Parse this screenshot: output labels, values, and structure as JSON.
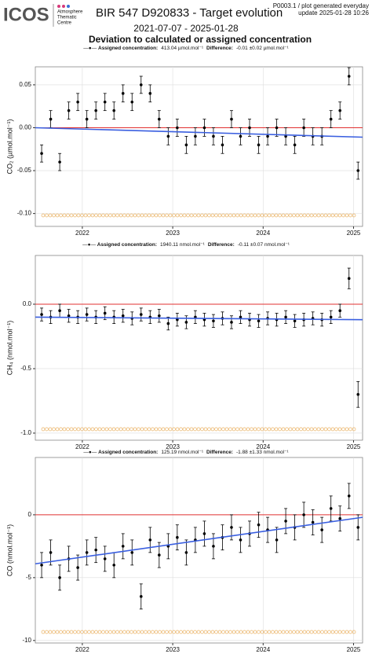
{
  "header": {
    "logo": "ICOS",
    "logo_sub": [
      "Atmosphere",
      "Thematic",
      "Centre"
    ],
    "title": "BIR 547 D920833 - Target evolution",
    "info": "P0003.1 / plot generated everyday",
    "update": "update  2025-01-28 10:26",
    "period": "2021-07-07 - 2025-01-28",
    "heading": "Deviation to calculated or assigned concentration"
  },
  "chart_data": [
    {
      "type": "scatter",
      "y_label": "CO₂ (µmol.mol⁻¹)",
      "legend": {
        "label1": "Assigned concentration:",
        "value1": "413.04 µmol.mol⁻¹",
        "label2": "Difference:",
        "value2": "-0.01 ±0.02 µmol.mol⁻¹"
      },
      "xlim": [
        2021.48,
        2025.1
      ],
      "xticks": [
        2022,
        2023,
        2024,
        2025
      ],
      "ylim": [
        -0.115,
        0.071
      ],
      "yticks": [
        0.05,
        {
          "value": 0,
          "label": "0.00"
        },
        -0.05,
        {
          "value": -0.1,
          "label": "-0.10"
        }
      ],
      "grid": true,
      "color": "#000000",
      "x": [
        2021.55,
        2021.65,
        2021.75,
        2021.85,
        2021.95,
        2022.05,
        2022.15,
        2022.25,
        2022.35,
        2022.45,
        2022.55,
        2022.65,
        2022.75,
        2022.85,
        2022.95,
        2023.05,
        2023.15,
        2023.25,
        2023.35,
        2023.45,
        2023.55,
        2023.65,
        2023.75,
        2023.85,
        2023.95,
        2024.05,
        2024.15,
        2024.25,
        2024.35,
        2024.45,
        2024.55,
        2024.65,
        2024.75,
        2024.85,
        2024.95,
        2025.05
      ],
      "values": [
        -0.03,
        0.01,
        -0.04,
        0.02,
        0.03,
        0.01,
        0.02,
        0.03,
        0.02,
        0.04,
        0.03,
        0.05,
        0.04,
        0.01,
        -0.01,
        0,
        -0.02,
        -0.01,
        0,
        -0.01,
        -0.02,
        0.01,
        -0.01,
        0,
        -0.02,
        -0.01,
        0,
        -0.01,
        -0.02,
        0,
        -0.01,
        -0.01,
        0.01,
        0.02,
        0.06,
        -0.05
      ],
      "errors": [
        0.01,
        0.01,
        0.01,
        0.01,
        0.01,
        0.01,
        0.01,
        0.01,
        0.01,
        0.01,
        0.01,
        0.01,
        0.01,
        0.01,
        0.01,
        0.01,
        0.01,
        0.01,
        0.01,
        0.01,
        0.01,
        0.01,
        0.01,
        0.01,
        0.01,
        0.01,
        0.01,
        0.01,
        0.01,
        0.01,
        0.01,
        0.01,
        0.01,
        0.01,
        0.01,
        0.01
      ],
      "reference": {
        "value": 0,
        "color": "#e03030"
      },
      "trend": {
        "x": [
          2021.48,
          2025.1
        ],
        "values": [
          0,
          -0.011
        ],
        "color": "#3a5fe0"
      }
    },
    {
      "type": "scatter",
      "y_label": "CH₄ (nmol.mol⁻¹)",
      "legend": {
        "label1": "Assigned concentration:",
        "value1": "1940.11 nmol.mol⁻¹",
        "label2": "Difference:",
        "value2": "-0.11 ±0.07 nmol.mol⁻¹"
      },
      "xlim": [
        2021.48,
        2025.1
      ],
      "xticks": [
        2022,
        2023,
        2024,
        2025
      ],
      "ylim": [
        -1.055,
        0.378
      ],
      "yticks": [
        {
          "value": 0,
          "label": "0.0"
        },
        -0.5,
        {
          "value": -1,
          "label": "-1.0"
        }
      ],
      "grid": true,
      "color": "#000000",
      "x": [
        2021.55,
        2021.65,
        2021.75,
        2021.85,
        2021.95,
        2022.05,
        2022.15,
        2022.25,
        2022.35,
        2022.45,
        2022.55,
        2022.65,
        2022.75,
        2022.85,
        2022.95,
        2023.05,
        2023.15,
        2023.25,
        2023.35,
        2023.45,
        2023.55,
        2023.65,
        2023.75,
        2023.85,
        2023.95,
        2024.05,
        2024.15,
        2024.25,
        2024.35,
        2024.45,
        2024.55,
        2024.65,
        2024.75,
        2024.85,
        2024.95,
        2025.05
      ],
      "values": [
        -0.08,
        -0.1,
        -0.05,
        -0.09,
        -0.1,
        -0.08,
        -0.1,
        -0.07,
        -0.1,
        -0.09,
        -0.11,
        -0.08,
        -0.1,
        -0.09,
        -0.15,
        -0.12,
        -0.14,
        -0.1,
        -0.12,
        -0.13,
        -0.11,
        -0.14,
        -0.1,
        -0.12,
        -0.13,
        -0.11,
        -0.12,
        -0.1,
        -0.13,
        -0.12,
        -0.11,
        -0.12,
        -0.1,
        -0.05,
        0.2,
        -0.7
      ],
      "errors": [
        0.05,
        0.05,
        0.05,
        0.05,
        0.05,
        0.05,
        0.05,
        0.05,
        0.05,
        0.05,
        0.05,
        0.05,
        0.05,
        0.05,
        0.05,
        0.05,
        0.05,
        0.05,
        0.05,
        0.05,
        0.05,
        0.05,
        0.05,
        0.05,
        0.05,
        0.05,
        0.05,
        0.05,
        0.05,
        0.05,
        0.05,
        0.05,
        0.05,
        0.05,
        0.08,
        0.1
      ],
      "reference": {
        "value": 0,
        "color": "#e03030"
      },
      "trend": {
        "x": [
          2021.48,
          2025.1
        ],
        "values": [
          -0.1,
          -0.12
        ],
        "color": "#3a5fe0"
      }
    },
    {
      "type": "scatter",
      "y_label": "CO (nmol.mol⁻¹)",
      "legend": {
        "label1": "Assigned concentration:",
        "value1": "125.19 nmol.mol⁻¹",
        "label2": "Difference:",
        "value2": "-1.88 ±1.33 nmol.mol⁻¹"
      },
      "xlim": [
        2021.48,
        2025.1
      ],
      "xticks": [
        2022,
        2023,
        2024,
        2025
      ],
      "ylim": [
        -10.2,
        4.56
      ],
      "yticks": [
        0,
        -5,
        -10
      ],
      "grid": true,
      "color": "#000000",
      "x": [
        2021.55,
        2021.65,
        2021.75,
        2021.85,
        2021.95,
        2022.05,
        2022.15,
        2022.25,
        2022.35,
        2022.45,
        2022.55,
        2022.65,
        2022.75,
        2022.85,
        2022.95,
        2023.05,
        2023.15,
        2023.25,
        2023.35,
        2023.45,
        2023.55,
        2023.65,
        2023.75,
        2023.85,
        2023.95,
        2024.05,
        2024.15,
        2024.25,
        2024.35,
        2024.45,
        2024.55,
        2024.65,
        2024.75,
        2024.85,
        2024.95,
        2025.05
      ],
      "values": [
        -4,
        -3,
        -5,
        -3.5,
        -4.2,
        -3,
        -2.8,
        -3.5,
        -4,
        -2.5,
        -3,
        -6.5,
        -2,
        -3.2,
        -2.5,
        -1.8,
        -3,
        -2,
        -1.5,
        -2.5,
        -1.8,
        -1,
        -2,
        -1.5,
        -0.8,
        -1.2,
        -2,
        -0.5,
        -1,
        0,
        -0.6,
        -1.2,
        0.5,
        -0.3,
        1.5,
        -1
      ],
      "errors": [
        1,
        1,
        1,
        1,
        1,
        1,
        1,
        1,
        1,
        1,
        1,
        1,
        1,
        1,
        1,
        1,
        1,
        1,
        1,
        1,
        1,
        1,
        1,
        1,
        1,
        1,
        1,
        1,
        1,
        1,
        1,
        1,
        1,
        1,
        1,
        1
      ],
      "reference": {
        "value": 0,
        "color": "#e03030"
      },
      "trend": {
        "x": [
          2021.48,
          2025.1
        ],
        "values": [
          -3.9,
          -0.2
        ],
        "color": "#3a5fe0"
      }
    }
  ]
}
